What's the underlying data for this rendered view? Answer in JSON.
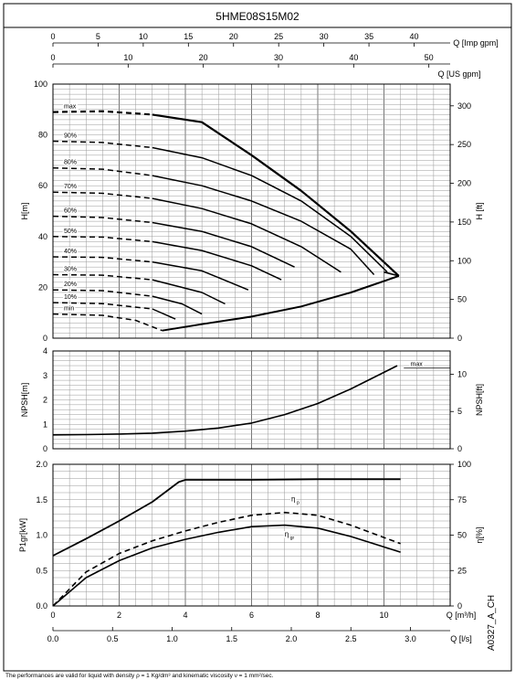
{
  "page": {
    "title": "5HME08S15M02",
    "code": "A0327_A_CH",
    "footnote": "The performances are valid for liquid with density ρ = 1 Kg/dm³ and kinematic viscosity ν = 1 mm²/sec."
  },
  "chart_data": [
    {
      "id": "head",
      "type": "line",
      "ylabel": "H[m]",
      "ylabel_right": "H [ft]",
      "ylim": [
        0,
        100
      ],
      "y_ticks": [
        0,
        20,
        40,
        60,
        80,
        100
      ],
      "y_right_ticks": [
        0,
        50,
        100,
        150,
        200,
        250,
        300
      ],
      "y_right_scale_ft_per_m": 3.28084,
      "xlim": [
        0,
        12
      ],
      "top_axis_imp": {
        "label": "Q [Imp gpm]",
        "ticks": [
          0,
          5,
          10,
          15,
          20,
          25,
          30,
          35,
          40
        ]
      },
      "top_axis_us": {
        "label": "Q [US gpm]",
        "ticks": [
          0,
          10,
          20,
          30,
          40,
          50
        ]
      },
      "grid": true,
      "speed_labels": [
        "max",
        "90%",
        "80%",
        "70%",
        "60%",
        "50%",
        "40%",
        "30%",
        "20%",
        "10%",
        "min"
      ],
      "series": [
        {
          "name": "max",
          "x": [
            0,
            1.5,
            3,
            4.5,
            6,
            7.5,
            9,
            10.45
          ],
          "y": [
            89,
            89.3,
            88,
            85,
            72,
            58,
            42,
            24.5
          ]
        },
        {
          "name": "90%",
          "x": [
            0,
            1.5,
            3,
            4.5,
            6,
            7.5,
            9,
            10.1
          ],
          "y": [
            77.5,
            77,
            75,
            71,
            64,
            54,
            40,
            26
          ]
        },
        {
          "name": "80%",
          "x": [
            0,
            1.5,
            3,
            4.5,
            6,
            7.5,
            9,
            9.7
          ],
          "y": [
            67,
            66.5,
            64,
            60,
            54,
            46,
            35,
            25
          ]
        },
        {
          "name": "70%",
          "x": [
            0,
            1.5,
            3,
            4.5,
            6,
            7.5,
            8.7
          ],
          "y": [
            57.5,
            57,
            55,
            51,
            45,
            36,
            26
          ]
        },
        {
          "name": "60%",
          "x": [
            0,
            1.5,
            3,
            4.5,
            6,
            7.3
          ],
          "y": [
            48,
            47.5,
            45.5,
            42,
            36,
            28
          ]
        },
        {
          "name": "50%",
          "x": [
            0,
            1.5,
            3,
            4.5,
            6,
            6.9
          ],
          "y": [
            40,
            39.8,
            38,
            34.5,
            28.5,
            23
          ]
        },
        {
          "name": "40%",
          "x": [
            0,
            1.5,
            3,
            4.5,
            5.9
          ],
          "y": [
            32,
            31.8,
            30,
            26.5,
            19
          ]
        },
        {
          "name": "30%",
          "x": [
            0,
            1.5,
            3,
            4.5,
            5.2
          ],
          "y": [
            25,
            24.8,
            23,
            18,
            13.5
          ]
        },
        {
          "name": "20%",
          "x": [
            0,
            1.5,
            3,
            3.9,
            4.5
          ],
          "y": [
            19,
            18.7,
            16.5,
            13.5,
            9.5
          ]
        },
        {
          "name": "10%",
          "x": [
            0,
            1.5,
            3,
            3.7
          ],
          "y": [
            14,
            13.6,
            11.5,
            7.5
          ]
        },
        {
          "name": "min",
          "x": [
            0,
            1.5,
            2.5,
            3.3
          ],
          "y": [
            9.5,
            9,
            7,
            3
          ]
        }
      ],
      "boundary": {
        "x": [
          3.3,
          4.5,
          6,
          7.5,
          9,
          10.45
        ],
        "y": [
          3,
          5.5,
          8.5,
          12.5,
          18,
          24.5
        ]
      }
    },
    {
      "id": "npsh",
      "type": "line",
      "ylabel": "NPSH[m]",
      "ylabel_right": "NPSH[ft]",
      "ylim": [
        0,
        4
      ],
      "y_ticks": [
        0,
        1,
        2,
        3,
        4
      ],
      "y_right_ticks": [
        0,
        5,
        10
      ],
      "grid": true,
      "label": "max",
      "series": [
        {
          "name": "max",
          "x": [
            0,
            1,
            2,
            3,
            4,
            5,
            6,
            7,
            8,
            9,
            10.4
          ],
          "y": [
            0.57,
            0.58,
            0.6,
            0.64,
            0.72,
            0.85,
            1.05,
            1.4,
            1.85,
            2.45,
            3.4
          ]
        }
      ]
    },
    {
      "id": "power",
      "type": "line",
      "ylabel": "P1gr[kW]",
      "ylabel_right": "η[%]",
      "ylim": [
        0,
        2
      ],
      "y_ticks": [
        0.0,
        0.5,
        1.0,
        1.5,
        2.0
      ],
      "y_right_ticks": [
        0,
        25,
        50,
        75,
        100
      ],
      "xlim": [
        0,
        12
      ],
      "xlabel": "Q [m³/h]",
      "x_ticks": [
        0,
        2,
        4,
        6,
        8,
        10
      ],
      "bottom_axis_ls": {
        "label": "Q [l/s]",
        "ticks": [
          "0.0",
          "0.5",
          "1.0",
          "1.5",
          "2.0",
          "2.5",
          "3.0"
        ]
      },
      "grid": true,
      "series": [
        {
          "name": "P1",
          "x": [
            0,
            1,
            2,
            3,
            3.8,
            4,
            6,
            8,
            10.5
          ],
          "y": [
            0.71,
            0.95,
            1.2,
            1.47,
            1.75,
            1.78,
            1.78,
            1.79,
            1.79
          ]
        },
        {
          "name": "ηp",
          "axis": "right",
          "style": "dashed",
          "x": [
            0,
            1,
            2,
            3,
            4,
            5,
            6,
            7,
            8,
            9,
            10.5
          ],
          "y": [
            0,
            24,
            37,
            46,
            53,
            59,
            64,
            66,
            64,
            57,
            44
          ]
        },
        {
          "name": "ηgr",
          "axis": "right",
          "style": "solid",
          "x": [
            0,
            1,
            2,
            3,
            4,
            5,
            6,
            7,
            8,
            9,
            10.5
          ],
          "y": [
            0,
            20,
            32,
            41,
            47,
            52,
            56,
            57,
            55,
            49,
            38
          ]
        }
      ],
      "labels": {
        "eta_p": "η",
        "eta_p_sub": "p",
        "eta_gr": "η",
        "eta_gr_sub": "gr"
      }
    }
  ]
}
